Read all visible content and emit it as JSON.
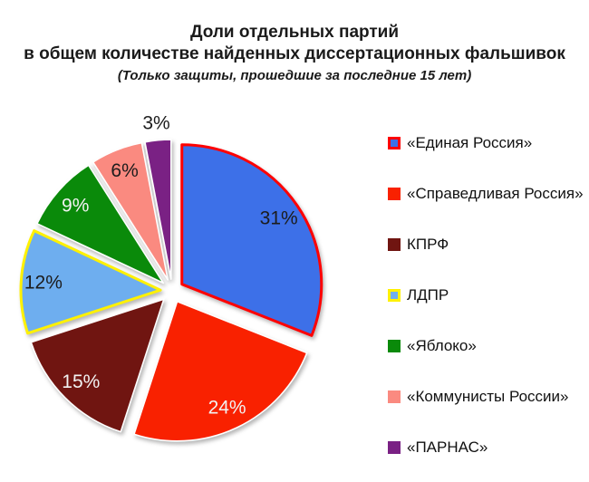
{
  "title": {
    "line1": "Доли отдельных партий",
    "line2": "в общем количестве найденных диссертационных фальшивок",
    "subtitle": "(Только защиты, прошедшие за последние 15 лет)"
  },
  "chart_data": {
    "type": "pie",
    "title": "Доли отдельных партий в общем количестве найденных диссертационных фальшивок",
    "subtitle": "(Только защиты, прошедшие за последние 15 лет)",
    "unit": "%",
    "start_angle_deg": 0,
    "direction": "clockwise",
    "exploded": true,
    "legend_position": "right",
    "label_format": "percent",
    "categories": [
      "«Единая Россия»",
      "«Справедливая Россия»",
      "КПРФ",
      "ЛДПР",
      "«Яблоко»",
      "«Коммунисты России»",
      "«ПАРНАС»"
    ],
    "values": [
      31,
      24,
      15,
      12,
      9,
      6,
      3
    ],
    "slices": [
      {
        "key": "edinaya-rossiya",
        "label": "«Единая Россия»",
        "value": 31,
        "pct_label": "31%",
        "fill": "#3D70E8",
        "border": "#FF0000",
        "pct_label_color": "#1C1C1C",
        "label_placement": "inside"
      },
      {
        "key": "spravedlivaya-rossiya",
        "label": "«Справедливая Россия»",
        "value": 24,
        "pct_label": "24%",
        "fill": "#F92100",
        "border": "#FFFFFF",
        "pct_label_color": "#F2F2F2",
        "label_placement": "inside"
      },
      {
        "key": "kprf",
        "label": "КПРФ",
        "value": 15,
        "pct_label": "15%",
        "fill": "#701511",
        "border": "#FFFFFF",
        "pct_label_color": "#F2F2F2",
        "label_placement": "inside"
      },
      {
        "key": "ldpr",
        "label": "ЛДПР",
        "value": 12,
        "pct_label": "12%",
        "fill": "#6EAEEF",
        "border": "#FFF100",
        "pct_label_color": "#1C1C1C",
        "label_placement": "inside"
      },
      {
        "key": "yabloko",
        "label": "«Яблоко»",
        "value": 9,
        "pct_label": "9%",
        "fill": "#0A8A0A",
        "border": "#FFFFFF",
        "pct_label_color": "#F2F2F2",
        "label_placement": "inside"
      },
      {
        "key": "kommunisty-rossii",
        "label": "«Коммунисты России»",
        "value": 6,
        "pct_label": "6%",
        "fill": "#FA8A80",
        "border": "#FFFFFF",
        "pct_label_color": "#1C1C1C",
        "label_placement": "inside"
      },
      {
        "key": "parnas",
        "label": "«ПАРНАС»",
        "value": 3,
        "pct_label": "3%",
        "fill": "#7A2184",
        "border": "#FFFFFF",
        "pct_label_color": "#1C1C1C",
        "label_placement": "outside"
      }
    ]
  },
  "colors": {
    "background": "#FFFFFF",
    "title_text": "#1A1A1A",
    "legend_text": "#111111"
  }
}
